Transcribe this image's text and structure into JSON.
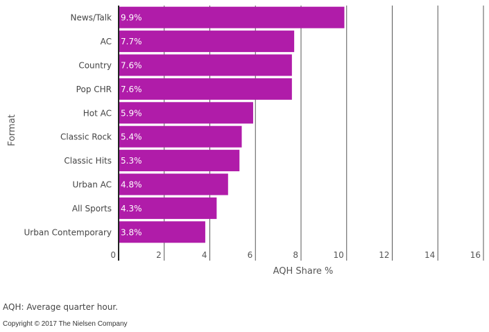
{
  "chart_data": {
    "type": "bar",
    "orientation": "horizontal",
    "categories": [
      "News/Talk",
      "AC",
      "Country",
      "Pop CHR",
      "Hot AC",
      "Classic Rock",
      "Classic Hits",
      "Urban AC",
      "All Sports",
      "Urban Contemporary"
    ],
    "values": [
      9.9,
      7.7,
      7.6,
      7.6,
      5.9,
      5.4,
      5.3,
      4.8,
      4.3,
      3.8
    ],
    "value_labels": [
      "9.9%",
      "7.7%",
      "7.6%",
      "7.6%",
      "5.9%",
      "5.4%",
      "5.3%",
      "4.8%",
      "4.3%",
      "3.8%"
    ],
    "xlim": [
      0,
      16
    ],
    "xticks": [
      "0",
      "2",
      "4",
      "6",
      "8",
      "10",
      "12",
      "14",
      "16"
    ],
    "xlabel": "AQH Share %",
    "ylabel": "Format",
    "grid": true,
    "bar_color": "#b01ca9"
  },
  "footnote": "AQH: Average quarter hour.",
  "copyright": "Copyright © 2017 The Nielsen Company"
}
